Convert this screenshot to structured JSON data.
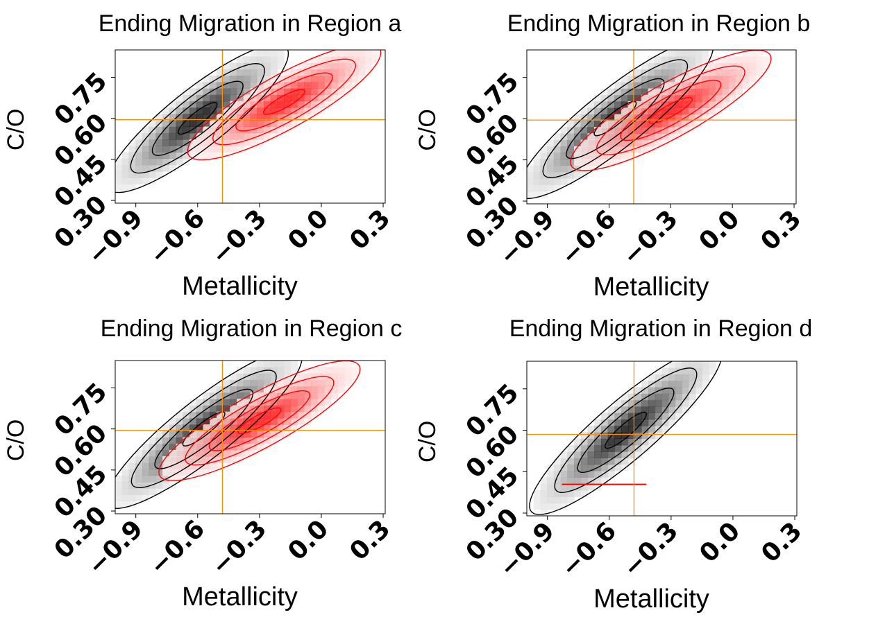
{
  "chart_data": [
    {
      "type": "density_contour",
      "title": "Ending Migration in Region a",
      "xlabel": "Metallicity",
      "ylabel": "C/O",
      "xlim": [
        -1.0,
        0.31
      ],
      "ylim": [
        0.29,
        0.85
      ],
      "xticks": [
        -0.9,
        -0.6,
        -0.3,
        0.0,
        0.3
      ],
      "xtick_labels": [
        "−0.9",
        "−0.6",
        "−0.3",
        "0.0",
        "0.3"
      ],
      "yticks": [
        0.3,
        0.45,
        0.6,
        0.75
      ],
      "ytick_labels": [
        "0.30",
        "0.45",
        "0.60",
        "0.75"
      ],
      "reference_lines": {
        "x": -0.48,
        "y": 0.595,
        "color": "#ff8c00"
      },
      "series": [
        {
          "name": "black",
          "color": "#000000",
          "center": [
            -0.6,
            0.6
          ],
          "spread": [
            0.24,
            0.1
          ],
          "angle_deg": 30
        },
        {
          "name": "red",
          "color": "#ff0000",
          "center": [
            -0.18,
            0.66
          ],
          "spread": [
            0.24,
            0.09
          ],
          "angle_deg": 22
        }
      ]
    },
    {
      "type": "density_contour",
      "title": "Ending Migration in Region b",
      "xlabel": "Metallicity",
      "ylabel": "C/O",
      "xlim": [
        -1.0,
        0.31
      ],
      "ylim": [
        0.29,
        0.85
      ],
      "xticks": [
        -0.9,
        -0.6,
        -0.3,
        0.0,
        0.3
      ],
      "xtick_labels": [
        "−0.9",
        "−0.6",
        "−0.3",
        "0.0",
        "0.3"
      ],
      "yticks": [
        0.3,
        0.45,
        0.6,
        0.75
      ],
      "ytick_labels": [
        "0.30",
        "0.45",
        "0.60",
        "0.75"
      ],
      "reference_lines": {
        "x": -0.48,
        "y": 0.595,
        "color": "#ff8c00"
      },
      "series": [
        {
          "name": "black",
          "color": "#000000",
          "center": [
            -0.57,
            0.6
          ],
          "spread": [
            0.26,
            0.1
          ],
          "angle_deg": 30
        },
        {
          "name": "red",
          "color": "#ff0000",
          "center": [
            -0.3,
            0.63
          ],
          "spread": [
            0.25,
            0.09
          ],
          "angle_deg": 22
        }
      ]
    },
    {
      "type": "density_contour",
      "title": "Ending Migration in Region c",
      "xlabel": "Metallicity",
      "ylabel": "C/O",
      "xlim": [
        -1.0,
        0.31
      ],
      "ylim": [
        0.29,
        0.85
      ],
      "xticks": [
        -0.9,
        -0.6,
        -0.3,
        0.0,
        0.3
      ],
      "xtick_labels": [
        "−0.9",
        "−0.6",
        "−0.3",
        "0.0",
        "0.3"
      ],
      "yticks": [
        0.3,
        0.45,
        0.6,
        0.75
      ],
      "ytick_labels": [
        "0.30",
        "0.45",
        "0.60",
        "0.75"
      ],
      "reference_lines": {
        "x": -0.48,
        "y": 0.595,
        "color": "#ff8c00"
      },
      "series": [
        {
          "name": "black",
          "color": "#000000",
          "center": [
            -0.57,
            0.6
          ],
          "spread": [
            0.26,
            0.1
          ],
          "angle_deg": 30
        },
        {
          "name": "red",
          "color": "#ff0000",
          "center": [
            -0.3,
            0.63
          ],
          "spread": [
            0.25,
            0.09
          ],
          "angle_deg": 22
        }
      ]
    },
    {
      "type": "density_contour",
      "title": "Ending Migration in Region d",
      "xlabel": "Metallicity",
      "ylabel": "C/O",
      "xlim": [
        -1.0,
        0.31
      ],
      "ylim": [
        0.29,
        0.85
      ],
      "xticks": [
        -0.9,
        -0.6,
        -0.3,
        0.0,
        0.3
      ],
      "xtick_labels": [
        "−0.9",
        "−0.6",
        "−0.3",
        "0.0",
        "0.3"
      ],
      "yticks": [
        0.3,
        0.45,
        0.6,
        0.75
      ],
      "ytick_labels": [
        "0.30",
        "0.45",
        "0.60",
        "0.75"
      ],
      "reference_lines": {
        "x": -0.48,
        "y": 0.585,
        "color": "#ff8c00"
      },
      "series": [
        {
          "name": "black",
          "color": "#000000",
          "center": [
            -0.52,
            0.6
          ],
          "spread": [
            0.26,
            0.1
          ],
          "angle_deg": 32
        },
        {
          "name": "red",
          "color": "#ff0000",
          "segment": {
            "x": [
              -0.83,
              -0.42
            ],
            "y": 0.404
          }
        }
      ]
    }
  ]
}
